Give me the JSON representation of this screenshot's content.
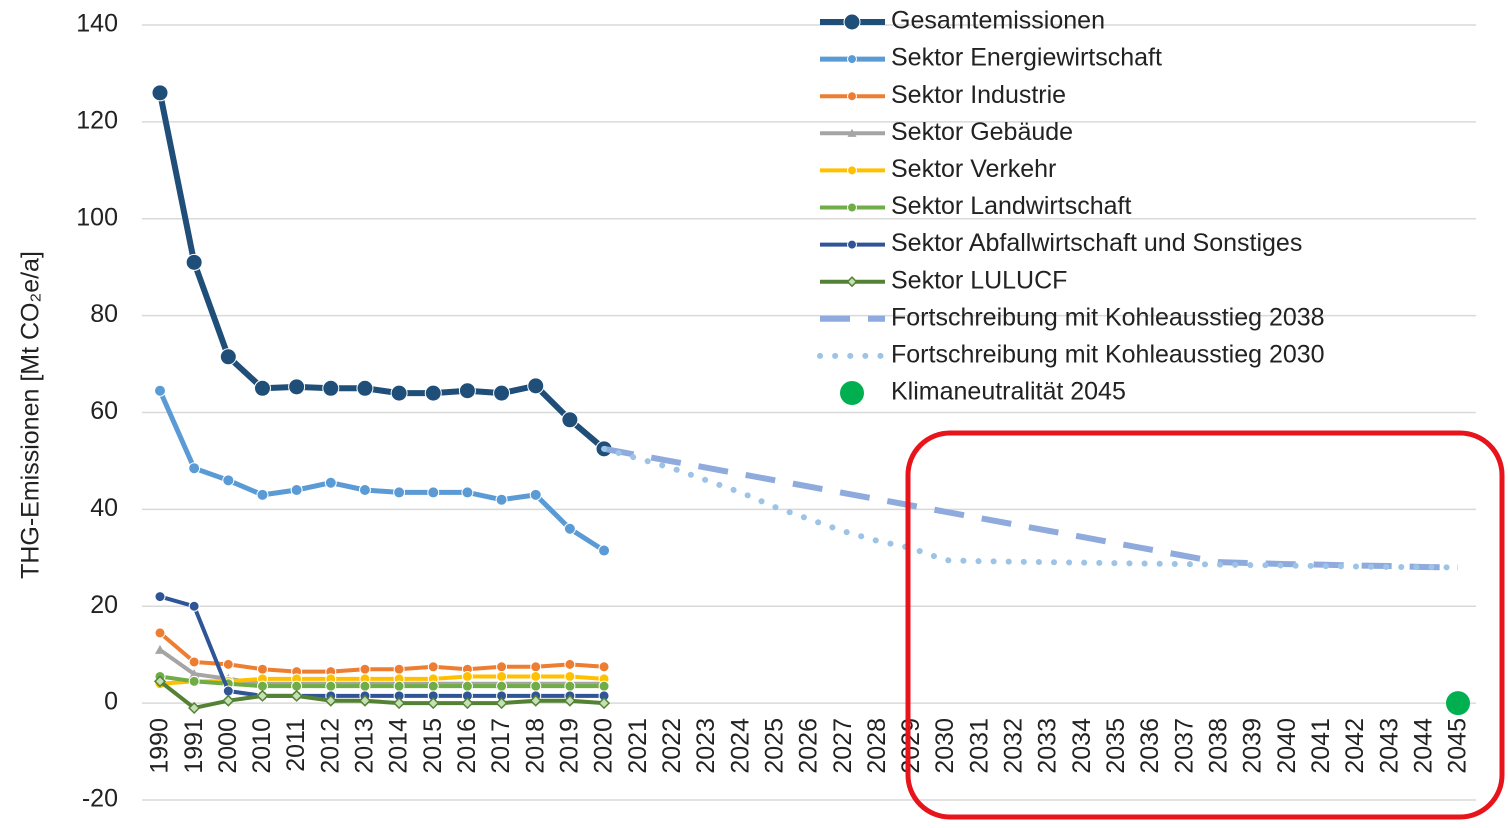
{
  "chart_data": {
    "type": "line",
    "ylabel": "THG-Emissionen  [Mt CO₂e/a]",
    "categories": [
      "1990",
      "1991",
      "2000",
      "2010",
      "2011",
      "2012",
      "2013",
      "2014",
      "2015",
      "2016",
      "2017",
      "2018",
      "2019",
      "2020",
      "2021",
      "2022",
      "2023",
      "2024",
      "2025",
      "2026",
      "2027",
      "2028",
      "2029",
      "2030",
      "2031",
      "2032",
      "2033",
      "2034",
      "2035",
      "2036",
      "2037",
      "2038",
      "2039",
      "2040",
      "2041",
      "2042",
      "2043",
      "2044",
      "2045"
    ],
    "ylim": [
      -20,
      140
    ],
    "yticks": [
      -20,
      0,
      20,
      40,
      60,
      80,
      100,
      120,
      140
    ],
    "grid": true,
    "series": [
      {
        "name": "Gesamtemissionen",
        "color": "#1f4e79",
        "style": "solid",
        "marker": "circle",
        "width": 6,
        "values": [
          126,
          91,
          71.5,
          65,
          65.3,
          65,
          65,
          64,
          64,
          64.5,
          64,
          65.5,
          58.5,
          52.5,
          null,
          null,
          null,
          null,
          null,
          null,
          null,
          null,
          null,
          null,
          null,
          null,
          null,
          null,
          null,
          null,
          null,
          null,
          null,
          null,
          null,
          null,
          null,
          null,
          null
        ]
      },
      {
        "name": "Sektor Energiewirtschaft",
        "color": "#5b9bd5",
        "style": "solid",
        "marker": "circle",
        "width": 5,
        "values": [
          64.5,
          48.5,
          46,
          43,
          44,
          45.5,
          44,
          43.5,
          43.5,
          43.5,
          42,
          43,
          36,
          31.5,
          null,
          null,
          null,
          null,
          null,
          null,
          null,
          null,
          null,
          null,
          null,
          null,
          null,
          null,
          null,
          null,
          null,
          null,
          null,
          null,
          null,
          null,
          null,
          null,
          null
        ]
      },
      {
        "name": "Sektor Industrie",
        "color": "#ed7d31",
        "style": "solid",
        "marker": "circle",
        "width": 4,
        "values": [
          14.5,
          8.5,
          8,
          7,
          6.5,
          6.5,
          7,
          7,
          7.5,
          7,
          7.5,
          7.5,
          8,
          7.5,
          null,
          null,
          null,
          null,
          null,
          null,
          null,
          null,
          null,
          null,
          null,
          null,
          null,
          null,
          null,
          null,
          null,
          null,
          null,
          null,
          null,
          null,
          null,
          null,
          null
        ]
      },
      {
        "name": "Sektor Gebäude",
        "color": "#a5a5a5",
        "style": "solid",
        "marker": "triangle",
        "width": 4,
        "values": [
          11,
          6,
          5,
          4,
          4,
          4,
          4,
          4,
          4,
          4,
          4,
          4,
          4,
          4,
          null,
          null,
          null,
          null,
          null,
          null,
          null,
          null,
          null,
          null,
          null,
          null,
          null,
          null,
          null,
          null,
          null,
          null,
          null,
          null,
          null,
          null,
          null,
          null,
          null
        ]
      },
      {
        "name": "Sektor Verkehr",
        "color": "#ffc000",
        "style": "solid",
        "marker": "circle",
        "width": 4,
        "values": [
          4,
          4.5,
          4.5,
          5,
          5,
          5,
          5,
          5,
          5,
          5.5,
          5.5,
          5.5,
          5.5,
          5,
          null,
          null,
          null,
          null,
          null,
          null,
          null,
          null,
          null,
          null,
          null,
          null,
          null,
          null,
          null,
          null,
          null,
          null,
          null,
          null,
          null,
          null,
          null,
          null,
          null
        ]
      },
      {
        "name": "Sektor Landwirtschaft",
        "color": "#70ad47",
        "style": "solid",
        "marker": "circle",
        "width": 4,
        "values": [
          5.5,
          4.5,
          4,
          3.5,
          3.5,
          3.5,
          3.5,
          3.5,
          3.5,
          3.5,
          3.5,
          3.5,
          3.5,
          3.5,
          null,
          null,
          null,
          null,
          null,
          null,
          null,
          null,
          null,
          null,
          null,
          null,
          null,
          null,
          null,
          null,
          null,
          null,
          null,
          null,
          null,
          null,
          null,
          null,
          null
        ]
      },
      {
        "name": "Sektor Abfallwirtschaft und Sonstiges",
        "color": "#2f5597",
        "style": "solid",
        "marker": "circle",
        "width": 4,
        "values": [
          22,
          20,
          2.5,
          1.5,
          1.5,
          1.5,
          1.5,
          1.5,
          1.5,
          1.5,
          1.5,
          1.5,
          1.5,
          1.5,
          null,
          null,
          null,
          null,
          null,
          null,
          null,
          null,
          null,
          null,
          null,
          null,
          null,
          null,
          null,
          null,
          null,
          null,
          null,
          null,
          null,
          null,
          null,
          null,
          null
        ]
      },
      {
        "name": "Sektor LULUCF",
        "color": "#548235",
        "style": "solid",
        "marker": "diamond",
        "width": 4,
        "values": [
          4.5,
          -1,
          0.5,
          1.5,
          1.5,
          0.5,
          0.5,
          0,
          0,
          0,
          0,
          0.5,
          0.5,
          0,
          null,
          null,
          null,
          null,
          null,
          null,
          null,
          null,
          null,
          null,
          null,
          null,
          null,
          null,
          null,
          null,
          null,
          null,
          null,
          null,
          null,
          null,
          null,
          null,
          null
        ]
      },
      {
        "name": "Fortschreibung mit Kohleausstieg 2038",
        "color": "#8faadc",
        "style": "dashed",
        "marker": "none",
        "width": 6,
        "values": [
          null,
          null,
          null,
          null,
          null,
          null,
          null,
          null,
          null,
          null,
          null,
          null,
          null,
          52.5,
          51.2,
          49.9,
          48.6,
          47.3,
          46,
          44.7,
          43.4,
          42.1,
          40.8,
          39.5,
          38.2,
          36.9,
          35.6,
          34.3,
          33,
          31.7,
          30.4,
          29.1,
          28.9,
          28.7,
          28.6,
          28.4,
          28.3,
          28.1,
          28
        ]
      },
      {
        "name": "Fortschreibung mit Kohleausstieg 2030",
        "color": "#9dc3e6",
        "style": "dotted",
        "marker": "none",
        "width": 6,
        "values": [
          null,
          null,
          null,
          null,
          null,
          null,
          null,
          null,
          null,
          null,
          null,
          null,
          null,
          52.5,
          50.5,
          48.5,
          46,
          43.5,
          40.5,
          38,
          35.5,
          33.5,
          32,
          29.5,
          29.3,
          29.2,
          29.1,
          29,
          28.9,
          28.8,
          28.7,
          28.6,
          28.5,
          28.4,
          28.3,
          28.2,
          28.1,
          28.1,
          28
        ]
      },
      {
        "name": "Klimaneutralität 2045",
        "color": "#00b050",
        "style": "point",
        "marker": "circle",
        "width": 0,
        "values": [
          null,
          null,
          null,
          null,
          null,
          null,
          null,
          null,
          null,
          null,
          null,
          null,
          null,
          null,
          null,
          null,
          null,
          null,
          null,
          null,
          null,
          null,
          null,
          null,
          null,
          null,
          null,
          null,
          null,
          null,
          null,
          null,
          null,
          null,
          null,
          null,
          null,
          null,
          0
        ]
      }
    ]
  }
}
